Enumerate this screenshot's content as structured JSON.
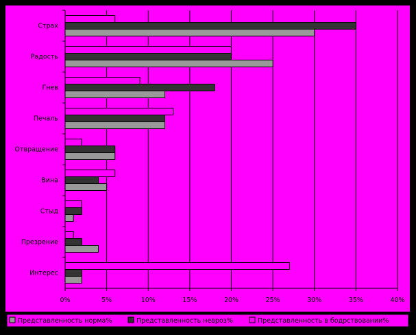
{
  "chart_data": {
    "type": "bar",
    "orientation": "horizontal",
    "categories": [
      "Страх",
      "Радость",
      "Гнев",
      "Печаль",
      "Отвращение",
      "Вина",
      "Стыд",
      "Презрение",
      "Интерес"
    ],
    "series": [
      {
        "name": "Представленность норма%",
        "color": "#999999",
        "values": [
          30,
          25,
          12,
          12,
          6,
          5,
          1,
          4,
          2
        ]
      },
      {
        "name": "Представленность невроз%",
        "color": "#333333",
        "values": [
          35,
          20,
          18,
          12,
          6,
          4,
          2,
          2,
          2
        ]
      },
      {
        "name": "Представленность в бодрствовании%",
        "color": "#ff00ff",
        "values": [
          6,
          20,
          9,
          13,
          2,
          6,
          2,
          1,
          27
        ]
      }
    ],
    "xlim": [
      0,
      40
    ],
    "x_ticks": [
      "0%",
      "5%",
      "10%",
      "15%",
      "20%",
      "25%",
      "30%",
      "35%",
      "40%"
    ],
    "grid": true,
    "legend_position": "bottom",
    "colors": {
      "background": "#000000",
      "plot_area": "#ff00ff",
      "grid": "#000000"
    }
  }
}
